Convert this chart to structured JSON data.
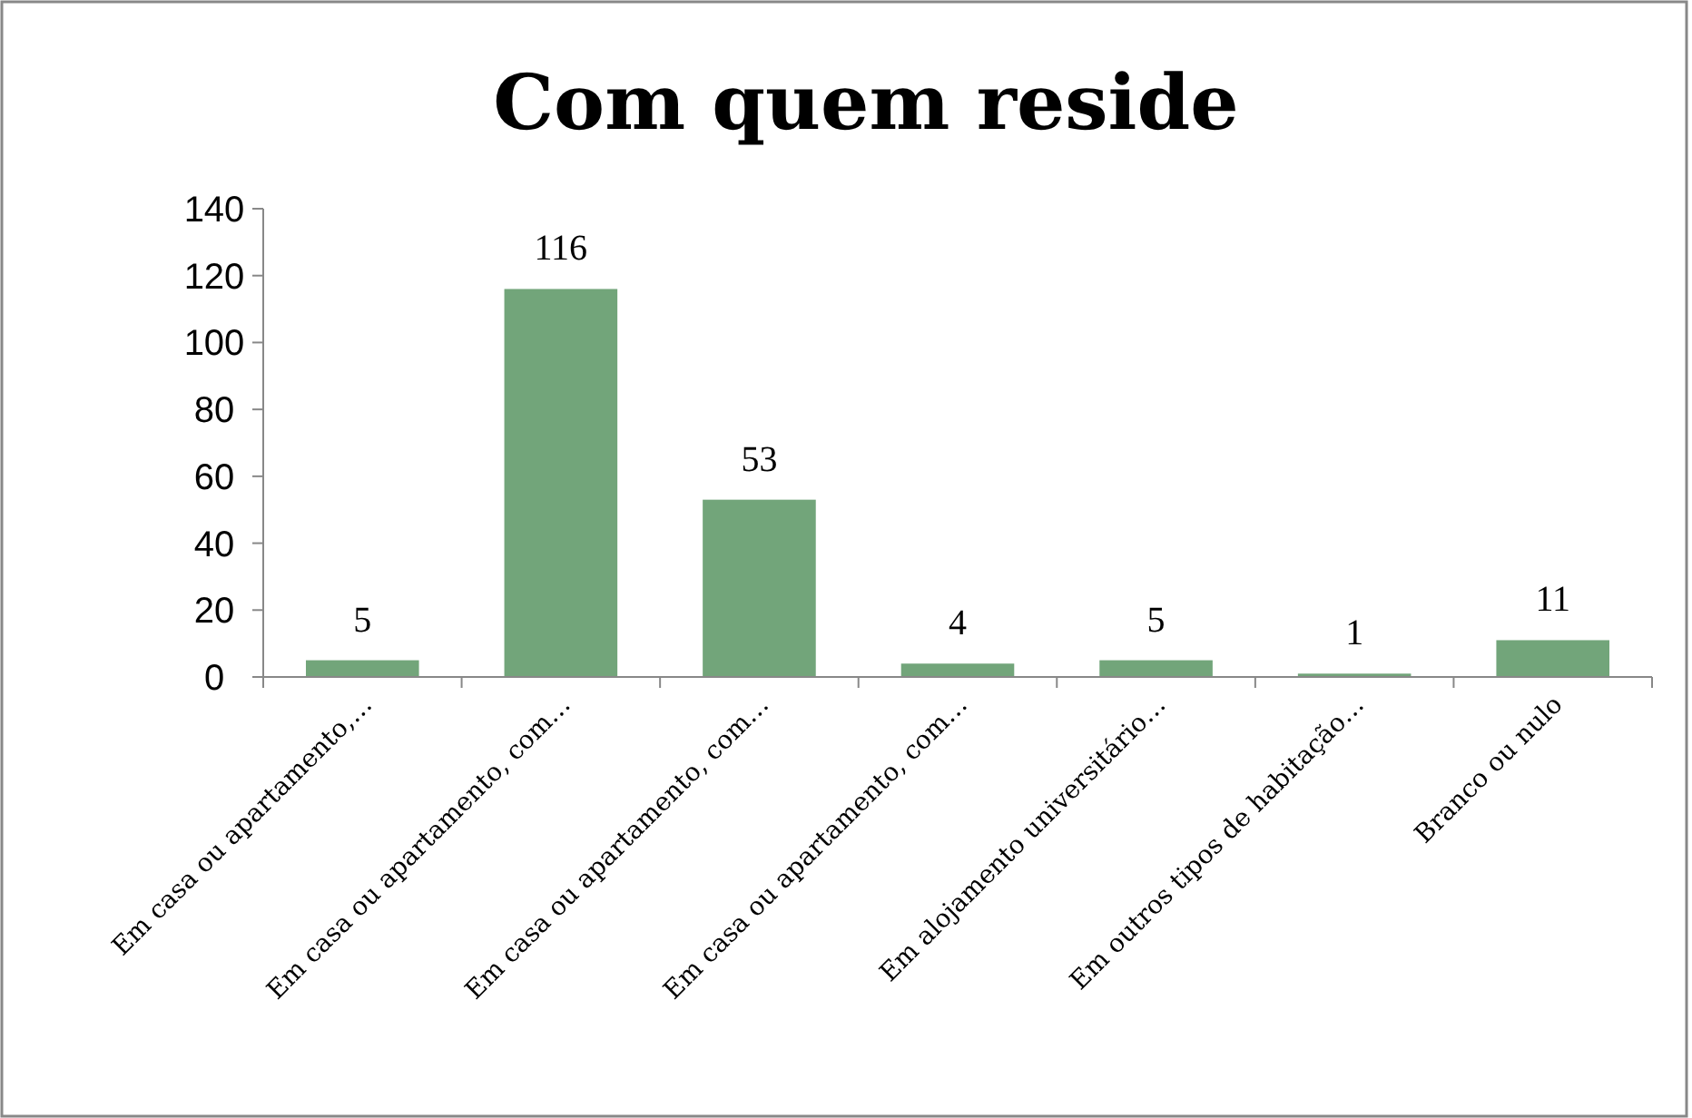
{
  "chart_data": {
    "type": "bar",
    "title": "Com quem reside",
    "categories": [
      "Em casa ou apartamento,…",
      "Em casa ou apartamento, com…",
      "Em casa ou apartamento, com…",
      "Em casa ou apartamento, com…",
      "Em alojamento universitário…",
      "Em outros tipos de habitação…",
      "Branco ou nulo"
    ],
    "values": [
      5,
      116,
      53,
      4,
      5,
      1,
      11
    ],
    "color": "#72a57a",
    "ylim": [
      0,
      140
    ],
    "yticks": [
      0,
      20,
      40,
      60,
      80,
      100,
      120,
      140
    ],
    "data_labels": true
  }
}
